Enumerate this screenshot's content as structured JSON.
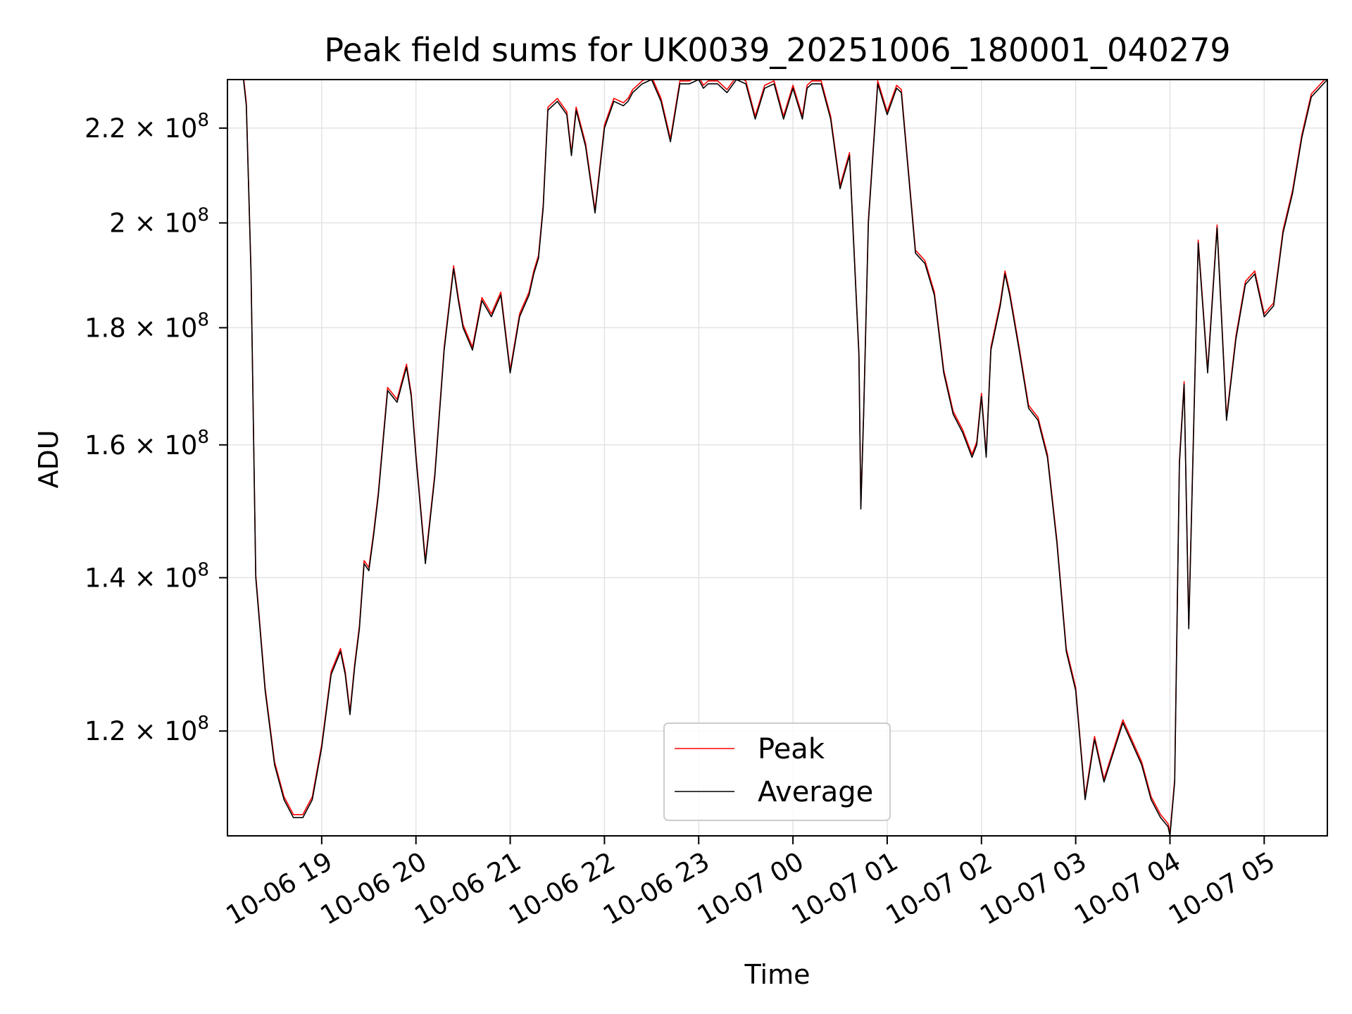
{
  "chart_data": {
    "type": "line",
    "title": "Peak field sums for UK0039_20251006_180001_040279",
    "xlabel": "Time",
    "ylabel": "ADU",
    "y_scale": "log",
    "ylim": [
      108000000,
      231000000
    ],
    "xlim_hours": [
      18.0,
      29.67
    ],
    "x_tick_hours": [
      19,
      20,
      21,
      22,
      23,
      24,
      25,
      26,
      27,
      28,
      29
    ],
    "x_tick_labels": [
      "10-06 19",
      "10-06 20",
      "10-06 21",
      "10-06 22",
      "10-06 23",
      "10-07 00",
      "10-07 01",
      "10-07 02",
      "10-07 03",
      "10-07 04",
      "10-07 05"
    ],
    "y_ticks": [
      120000000,
      140000000,
      160000000,
      180000000,
      200000000,
      220000000
    ],
    "y_tick_mantissas": [
      "1.2",
      "1.4",
      "1.6",
      "1.8",
      "2",
      "2.2"
    ],
    "y_tick_exponent": "8",
    "grid": true,
    "legend": {
      "position": "bottom-center",
      "entries": [
        "Peak",
        "Average"
      ]
    },
    "series": [
      {
        "name": "Peak",
        "color": "#ff0000"
      },
      {
        "name": "Average",
        "color": "#000000"
      }
    ],
    "x": [
      18.17,
      18.2,
      18.25,
      18.3,
      18.4,
      18.5,
      18.6,
      18.7,
      18.8,
      18.9,
      19.0,
      19.1,
      19.2,
      19.25,
      19.3,
      19.35,
      19.4,
      19.45,
      19.5,
      19.55,
      19.6,
      19.7,
      19.8,
      19.85,
      19.9,
      19.95,
      20.0,
      20.1,
      20.2,
      20.3,
      20.4,
      20.45,
      20.5,
      20.6,
      20.7,
      20.8,
      20.9,
      21.0,
      21.1,
      21.2,
      21.25,
      21.3,
      21.35,
      21.4,
      21.5,
      21.6,
      21.65,
      21.7,
      21.8,
      21.9,
      22.0,
      22.1,
      22.2,
      22.25,
      22.3,
      22.35,
      22.4,
      22.5,
      22.6,
      22.7,
      22.8,
      22.9,
      23.0,
      23.05,
      23.1,
      23.2,
      23.3,
      23.4,
      23.5,
      23.6,
      23.7,
      23.8,
      23.9,
      24.0,
      24.1,
      24.15,
      24.2,
      24.3,
      24.4,
      24.5,
      24.6,
      24.7,
      24.72,
      24.75,
      24.8,
      24.9,
      25.0,
      25.1,
      25.15,
      25.2,
      25.3,
      25.4,
      25.5,
      25.6,
      25.7,
      25.8,
      25.9,
      25.95,
      26.0,
      26.05,
      26.1,
      26.2,
      26.25,
      26.3,
      26.4,
      26.5,
      26.6,
      26.7,
      26.8,
      26.9,
      27.0,
      27.1,
      27.2,
      27.3,
      27.5,
      27.7,
      27.8,
      27.9,
      27.98,
      28.0,
      28.05,
      28.1,
      28.15,
      28.2,
      28.3,
      28.4,
      28.5,
      28.6,
      28.7,
      28.8,
      28.9,
      29.0,
      29.1,
      29.2,
      29.3,
      29.4,
      29.5,
      29.67
    ],
    "values": [
      231000000,
      225000000,
      190000000,
      140000000,
      125000000,
      116000000,
      112000000,
      110000000,
      110000000,
      112000000,
      118000000,
      127000000,
      130000000,
      127000000,
      122000000,
      128000000,
      133000000,
      142000000,
      141000000,
      146000000,
      152000000,
      169000000,
      167000000,
      170000000,
      173000000,
      168000000,
      158000000,
      142000000,
      155000000,
      176000000,
      191000000,
      185000000,
      180000000,
      176000000,
      185000000,
      182000000,
      186000000,
      172000000,
      182000000,
      186000000,
      190000000,
      193000000,
      203000000,
      224000000,
      226000000,
      223000000,
      214000000,
      224000000,
      216000000,
      202000000,
      220000000,
      226000000,
      225000000,
      226000000,
      228000000,
      229000000,
      230000000,
      231000000,
      226000000,
      217000000,
      230000000,
      230000000,
      231000000,
      229000000,
      230000000,
      230000000,
      228000000,
      231000000,
      230000000,
      222000000,
      229000000,
      230000000,
      222000000,
      229000000,
      222000000,
      229000000,
      230000000,
      230000000,
      222000000,
      207000000,
      214000000,
      175000000,
      150000000,
      165000000,
      200000000,
      230000000,
      223000000,
      229000000,
      228000000,
      216000000,
      194000000,
      192000000,
      186000000,
      172000000,
      165000000,
      162000000,
      158000000,
      160000000,
      168000000,
      158000000,
      176000000,
      184000000,
      190000000,
      186000000,
      176000000,
      166000000,
      164000000,
      158000000,
      145000000,
      130000000,
      125000000,
      112000000,
      119000000,
      114000000,
      121000000,
      116000000,
      112000000,
      110000000,
      109000000,
      108000000,
      114000000,
      157000000,
      170000000,
      133000000,
      196000000,
      172000000,
      199000000,
      164000000,
      178000000,
      188000000,
      190000000,
      182000000,
      184000000,
      198000000,
      206000000,
      218000000,
      227000000,
      231000000
    ]
  }
}
